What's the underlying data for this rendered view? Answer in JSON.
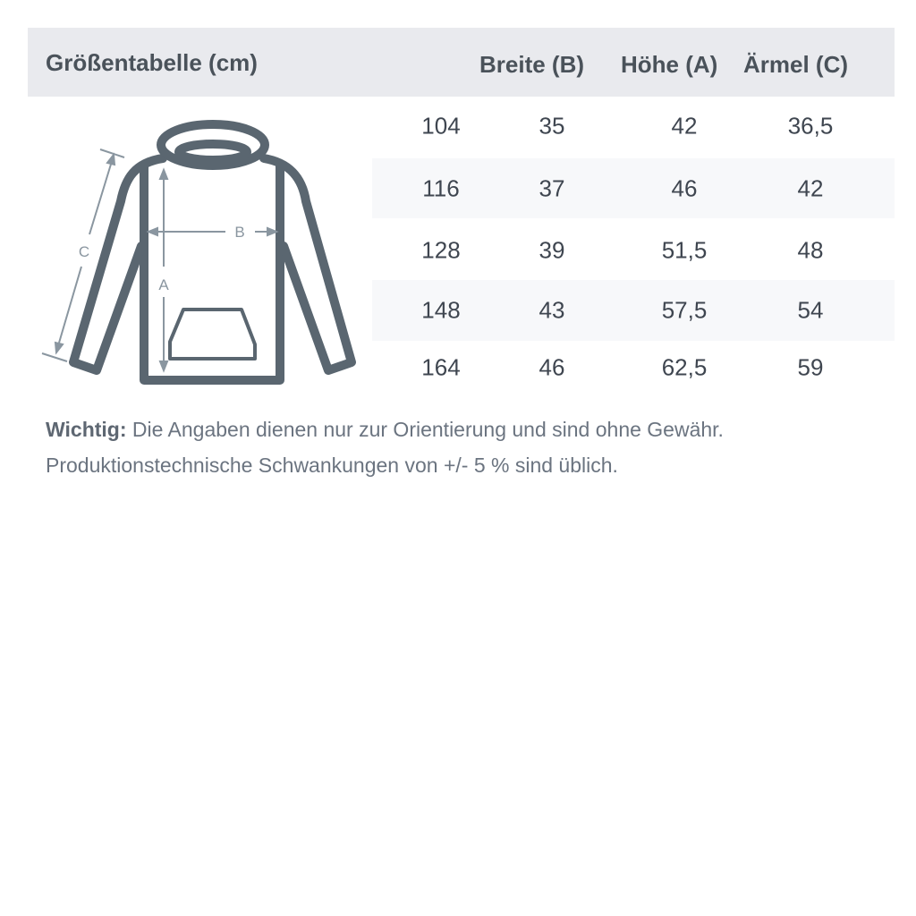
{
  "header": {
    "title": "Größentabelle (cm)",
    "columns": [
      "Breite (B)",
      "Höhe (A)",
      "Ärmel (C)"
    ]
  },
  "rows": [
    {
      "size": "104",
      "breite": "35",
      "hoehe": "42",
      "aermel": "36,5"
    },
    {
      "size": "116",
      "breite": "37",
      "hoehe": "46",
      "aermel": "42"
    },
    {
      "size": "128",
      "breite": "39",
      "hoehe": "51,5",
      "aermel": "48"
    },
    {
      "size": "148",
      "breite": "43",
      "hoehe": "57,5",
      "aermel": "54"
    },
    {
      "size": "164",
      "breite": "46",
      "hoehe": "62,5",
      "aermel": "59"
    }
  ],
  "diagram": {
    "icon": "hoodie-icon",
    "labels": {
      "a": "A",
      "b": "B",
      "c": "C"
    }
  },
  "note": {
    "label": "Wichtig:",
    "line1": " Die Angaben dienen nur zur Orientierung und sind ohne Gewähr.",
    "line2": "Produktionstechnische Schwankungen von +/- 5 % sind üblich."
  },
  "colors": {
    "header_bg": "#e9eaee",
    "stripe_bg": "#f7f8fa",
    "outline": "#5a6670",
    "arrows": "#8a96a0"
  }
}
